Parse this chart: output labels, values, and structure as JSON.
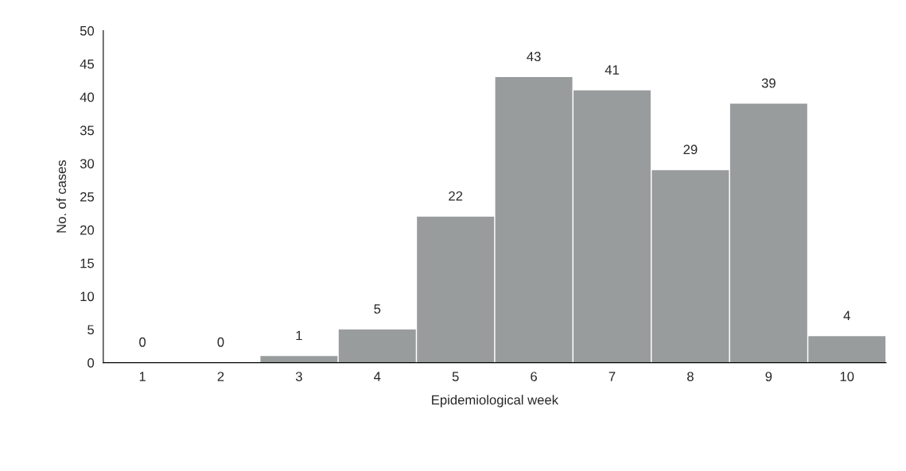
{
  "chart_data": {
    "type": "bar",
    "xlabel": "Epidemiological week",
    "ylabel": "No. of cases",
    "categories": [
      "1",
      "2",
      "3",
      "4",
      "5",
      "6",
      "7",
      "8",
      "9",
      "10"
    ],
    "values": [
      0,
      0,
      1,
      5,
      22,
      43,
      41,
      29,
      39,
      4
    ],
    "color": "#999c9c",
    "ylim": [
      0,
      50
    ],
    "yticks": [
      0,
      5,
      10,
      15,
      20,
      25,
      30,
      35,
      40,
      45,
      50
    ],
    "data_labels": true,
    "grid": false
  }
}
